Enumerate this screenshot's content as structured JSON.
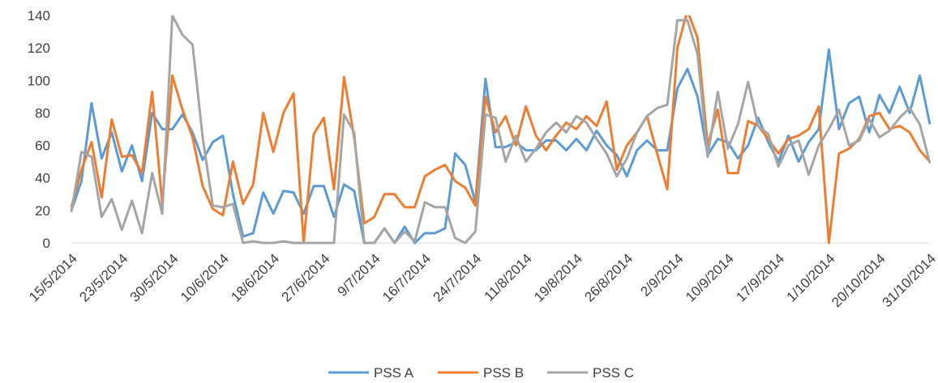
{
  "chart_data": {
    "type": "line",
    "categories": [
      "15/5/2014",
      null,
      null,
      null,
      null,
      "23/5/2014",
      null,
      null,
      null,
      null,
      "30/5/2014",
      null,
      null,
      null,
      null,
      "10/6/2014",
      null,
      null,
      null,
      null,
      "18/6/2014",
      null,
      null,
      null,
      null,
      "27/6/2014",
      null,
      null,
      null,
      null,
      "9/7/2014",
      null,
      null,
      null,
      null,
      "16/7/2014",
      null,
      null,
      null,
      null,
      "24/7/2014",
      null,
      null,
      null,
      null,
      "11/8/2014",
      null,
      null,
      null,
      null,
      "19/8/2014",
      null,
      null,
      null,
      null,
      "26/8/2014",
      null,
      null,
      null,
      null,
      "2/9/2014",
      null,
      null,
      null,
      null,
      "10/9/2014",
      null,
      null,
      null,
      null,
      "17/9/2014",
      null,
      null,
      null,
      null,
      "1/10/2014",
      null,
      null,
      null,
      null,
      "20/10/2014",
      null,
      null,
      null,
      null,
      "31/10/2014"
    ],
    "series": [
      {
        "name": "PSS A",
        "color": "#5b9bd5",
        "values": [
          20,
          38,
          86,
          52,
          68,
          44,
          60,
          38,
          80,
          70,
          70,
          79,
          68,
          51,
          62,
          66,
          30,
          4,
          6,
          31,
          18,
          32,
          31,
          18,
          35,
          35,
          16,
          36,
          32,
          0,
          0,
          9,
          0,
          10,
          0,
          6,
          6,
          9,
          55,
          48,
          25,
          101,
          59,
          59,
          62,
          57,
          57,
          63,
          63,
          57,
          64,
          57,
          69,
          60,
          54,
          41,
          57,
          63,
          57,
          57,
          95,
          107,
          90,
          54,
          64,
          62,
          52,
          60,
          77,
          62,
          50,
          66,
          50,
          62,
          70,
          119,
          70,
          86,
          90,
          68,
          91,
          80,
          96,
          80,
          103,
          73
        ]
      },
      {
        "name": "PSS B",
        "color": "#ed7d31",
        "values": [
          22,
          45,
          62,
          28,
          76,
          53,
          54,
          43,
          93,
          24,
          103,
          82,
          65,
          35,
          21,
          17,
          50,
          24,
          36,
          80,
          56,
          80,
          92,
          0,
          67,
          77,
          33,
          102,
          65,
          12,
          16,
          30,
          30,
          22,
          22,
          41,
          45,
          48,
          38,
          34,
          23,
          90,
          68,
          78,
          60,
          84,
          66,
          57,
          66,
          74,
          70,
          78,
          72,
          87,
          45,
          60,
          68,
          78,
          55,
          33,
          120,
          143,
          126,
          60,
          82,
          43,
          43,
          75,
          72,
          64,
          55,
          64,
          66,
          70,
          84,
          0,
          55,
          58,
          64,
          78,
          80,
          70,
          72,
          68,
          57,
          50
        ]
      },
      {
        "name": "PSS C",
        "color": "#a5a5a5",
        "values": [
          19,
          56,
          53,
          16,
          27,
          8,
          26,
          6,
          43,
          18,
          140,
          128,
          122,
          65,
          23,
          22,
          24,
          0,
          1,
          0,
          0,
          1,
          0,
          0,
          0,
          0,
          0,
          79,
          68,
          0,
          0,
          9,
          0,
          7,
          1,
          25,
          22,
          22,
          3,
          0,
          7,
          79,
          77,
          50,
          66,
          50,
          58,
          68,
          74,
          68,
          78,
          74,
          64,
          55,
          41,
          52,
          68,
          78,
          83,
          85,
          137,
          137,
          116,
          53,
          93,
          58,
          73,
          99,
          72,
          67,
          47,
          60,
          63,
          42,
          60,
          70,
          82,
          60,
          63,
          76,
          65,
          69,
          77,
          83,
          73,
          49
        ]
      }
    ],
    "ylim": [
      0,
      140
    ],
    "yticks": [
      0,
      20,
      40,
      60,
      80,
      100,
      120,
      140
    ],
    "grid": false,
    "legend": "bottom"
  }
}
